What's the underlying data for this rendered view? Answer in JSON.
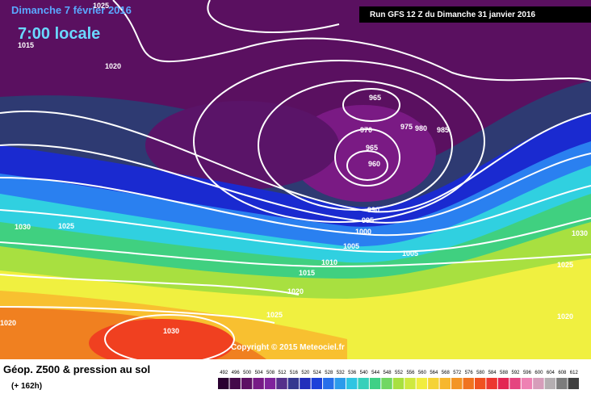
{
  "header": {
    "date": "Dimanche 7 février 2016",
    "time": "7:00 locale",
    "run": "Run GFS 12 Z du Dimanche 31 janvier 2016"
  },
  "isobar_labels": [
    1015,
    1020,
    1025,
    965,
    970,
    975,
    980,
    985,
    965,
    960,
    990,
    995,
    1000,
    1005,
    1010,
    1015,
    1020,
    1025,
    1030,
    1025,
    1030,
    1005,
    1025,
    1030,
    1020,
    1020
  ],
  "copyright": "Copyright © 2015 Meteociel.fr",
  "legend": {
    "title": "Géop. Z500 & pression au sol",
    "lead": "(+ 162h)",
    "ticks": [
      492,
      496,
      500,
      504,
      508,
      512,
      516,
      520,
      524,
      528,
      532,
      536,
      540,
      544,
      548,
      552,
      556,
      560,
      564,
      568,
      572,
      576,
      580,
      584,
      588,
      592,
      596,
      600,
      604,
      608,
      612
    ]
  }
}
